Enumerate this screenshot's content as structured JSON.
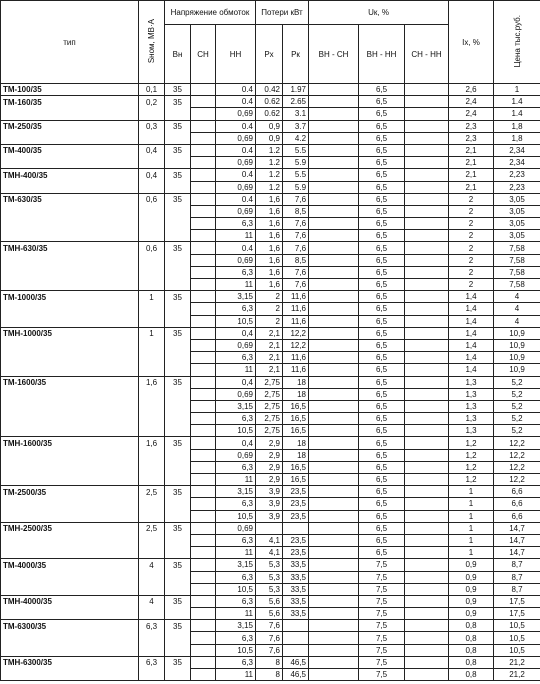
{
  "table": {
    "header": {
      "type": "тип",
      "s_nom": "Sном, МВ·А",
      "voltage": "Напряжение обмоток",
      "losses": "Потери кВт",
      "uk": "Uк, %",
      "ix": "Iх, %",
      "price": "Цена тыс.руб.",
      "sub": [
        "Вн",
        "СН",
        "НН",
        "Рх",
        "Рк",
        "ВН - СН",
        "ВН - НН",
        "СН - НН"
      ]
    },
    "rows": [
      [
        "ТМ-100/35",
        "0,1",
        "35",
        null,
        "0.4",
        "0.42",
        "1.97",
        null,
        "6,5",
        null,
        "2,6",
        "1"
      ],
      [
        "ТМ-160/35",
        "0,2",
        "35",
        null,
        "0.4",
        "0.62",
        "2.65",
        null,
        "6,5",
        null,
        "2,4",
        "1.4"
      ],
      [
        null,
        null,
        null,
        null,
        "0,69",
        "0.62",
        "3.1",
        null,
        "6,5",
        null,
        "2,4",
        "1.4"
      ],
      [
        "ТМ-250/35",
        "0,3",
        "35",
        null,
        "0.4",
        "0,9",
        "3.7",
        null,
        "6,5",
        null,
        "2,3",
        "1,8"
      ],
      [
        null,
        null,
        null,
        null,
        "0,69",
        "0,9",
        "4.2",
        null,
        "6,5",
        null,
        "2,3",
        "1,8"
      ],
      [
        "ТМ-400/35",
        "0,4",
        "35",
        null,
        "0.4",
        "1.2",
        "5.5",
        null,
        "6,5",
        null,
        "2,1",
        "2,34"
      ],
      [
        null,
        null,
        null,
        null,
        "0,69",
        "1.2",
        "5.9",
        null,
        "6,5",
        null,
        "2,1",
        "2,34"
      ],
      [
        "ТМН-400/35",
        "0,4",
        "35",
        null,
        "0.4",
        "1.2",
        "5.5",
        null,
        "6,5",
        null,
        "2,1",
        "2,23"
      ],
      [
        null,
        null,
        null,
        null,
        "0,69",
        "1.2",
        "5.9",
        null,
        "6,5",
        null,
        "2,1",
        "2,23"
      ],
      [
        "ТМ-630/35",
        "0,6",
        "35",
        null,
        "0.4",
        "1,6",
        "7,6",
        null,
        "6,5",
        null,
        "2",
        "3,05"
      ],
      [
        null,
        null,
        null,
        null,
        "0,69",
        "1,6",
        "8,5",
        null,
        "6,5",
        null,
        "2",
        "3,05"
      ],
      [
        null,
        null,
        null,
        null,
        "6,3",
        "1,6",
        "7,6",
        null,
        "6,5",
        null,
        "2",
        "3,05"
      ],
      [
        null,
        null,
        null,
        null,
        "11",
        "1,6",
        "7,6",
        null,
        "6,5",
        null,
        "2",
        "3,05"
      ],
      [
        "ТМН-630/35",
        "0,6",
        "35",
        null,
        "0.4",
        "1,6",
        "7,6",
        null,
        "6,5",
        null,
        "2",
        "7,58"
      ],
      [
        null,
        null,
        null,
        null,
        "0,69",
        "1,6",
        "8,5",
        null,
        "6,5",
        null,
        "2",
        "7,58"
      ],
      [
        null,
        null,
        null,
        null,
        "6,3",
        "1,6",
        "7,6",
        null,
        "6,5",
        null,
        "2",
        "7,58"
      ],
      [
        null,
        null,
        null,
        null,
        "11",
        "1,6",
        "7,6",
        null,
        "6,5",
        null,
        "2",
        "7,58"
      ],
      [
        "ТМ-1000/35",
        "1",
        "35",
        null,
        "3,15",
        "2",
        "11,6",
        null,
        "6,5",
        null,
        "1,4",
        "4"
      ],
      [
        null,
        null,
        null,
        null,
        "6,3",
        "2",
        "11,6",
        null,
        "6,5",
        null,
        "1,4",
        "4"
      ],
      [
        null,
        null,
        null,
        null,
        "10,5",
        "2",
        "11,6",
        null,
        "6,5",
        null,
        "1,4",
        "4"
      ],
      [
        "ТМН-1000/35",
        "1",
        "35",
        null,
        "0,4",
        "2,1",
        "12,2",
        null,
        "6,5",
        null,
        "1,4",
        "10,9"
      ],
      [
        null,
        null,
        null,
        null,
        "0,69",
        "2,1",
        "12,2",
        null,
        "6,5",
        null,
        "1,4",
        "10,9"
      ],
      [
        null,
        null,
        null,
        null,
        "6,3",
        "2,1",
        "11,6",
        null,
        "6,5",
        null,
        "1,4",
        "10,9"
      ],
      [
        null,
        null,
        null,
        null,
        "11",
        "2,1",
        "11,6",
        null,
        "6,5",
        null,
        "1,4",
        "10,9"
      ],
      [
        "ТМ-1600/35",
        "1,6",
        "35",
        null,
        "0,4",
        "2,75",
        "18",
        null,
        "6,5",
        null,
        "1,3",
        "5,2"
      ],
      [
        null,
        null,
        null,
        null,
        "0,69",
        "2,75",
        "18",
        null,
        "6,5",
        null,
        "1,3",
        "5,2"
      ],
      [
        null,
        null,
        null,
        null,
        "3,15",
        "2,75",
        "16,5",
        null,
        "6,5",
        null,
        "1,3",
        "5,2"
      ],
      [
        null,
        null,
        null,
        null,
        "6,3",
        "2,75",
        "16,5",
        null,
        "6,5",
        null,
        "1,3",
        "5,2"
      ],
      [
        null,
        null,
        null,
        null,
        "10,5",
        "2,75",
        "16,5",
        null,
        "6,5",
        null,
        "1,3",
        "5,2"
      ],
      [
        "ТМН-1600/35",
        "1,6",
        "35",
        null,
        "0,4",
        "2,9",
        "18",
        null,
        "6,5",
        null,
        "1,2",
        "12,2"
      ],
      [
        null,
        null,
        null,
        null,
        "0,69",
        "2,9",
        "18",
        null,
        "6,5",
        null,
        "1,2",
        "12,2"
      ],
      [
        null,
        null,
        null,
        null,
        "6,3",
        "2,9",
        "16,5",
        null,
        "6,5",
        null,
        "1,2",
        "12,2"
      ],
      [
        null,
        null,
        null,
        null,
        "11",
        "2,9",
        "16,5",
        null,
        "6,5",
        null,
        "1,2",
        "12,2"
      ],
      [
        "ТМ-2500/35",
        "2,5",
        "35",
        null,
        "3,15",
        "3,9",
        "23,5",
        null,
        "6,5",
        null,
        "1",
        "6,6"
      ],
      [
        null,
        null,
        null,
        null,
        "6,3",
        "3,9",
        "23,5",
        null,
        "6,5",
        null,
        "1",
        "6,6"
      ],
      [
        null,
        null,
        null,
        null,
        "10,5",
        "3,9",
        "23,5",
        null,
        "6,5",
        null,
        "1",
        "6,6"
      ],
      [
        "ТМН-2500/35",
        "2,5",
        "35",
        null,
        "0,69",
        null,
        null,
        null,
        "6,5",
        null,
        "1",
        "14,7"
      ],
      [
        null,
        null,
        null,
        null,
        "6,3",
        "4,1",
        "23,5",
        null,
        "6,5",
        null,
        "1",
        "14,7"
      ],
      [
        null,
        null,
        null,
        null,
        "11",
        "4,1",
        "23,5",
        null,
        "6,5",
        null,
        "1",
        "14,7"
      ],
      [
        "ТМ-4000/35",
        "4",
        "35",
        null,
        "3,15",
        "5,3",
        "33,5",
        null,
        "7,5",
        null,
        "0,9",
        "8,7"
      ],
      [
        null,
        null,
        null,
        null,
        "6,3",
        "5,3",
        "33,5",
        null,
        "7,5",
        null,
        "0,9",
        "8,7"
      ],
      [
        null,
        null,
        null,
        null,
        "10,5",
        "5,3",
        "33,5",
        null,
        "7,5",
        null,
        "0,9",
        "8,7"
      ],
      [
        "ТМН-4000/35",
        "4",
        "35",
        null,
        "6,3",
        "5,6",
        "33,5",
        null,
        "7,5",
        null,
        "0,9",
        "17,5"
      ],
      [
        null,
        null,
        null,
        null,
        "11",
        "5,6",
        "33,5",
        null,
        "7,5",
        null,
        "0,9",
        "17,5"
      ],
      [
        "ТМ-6300/35",
        "6,3",
        "35",
        null,
        "3,15",
        "7,6",
        null,
        null,
        "7,5",
        null,
        "0,8",
        "10,5"
      ],
      [
        null,
        null,
        null,
        null,
        "6,3",
        "7,6",
        null,
        null,
        "7,5",
        null,
        "0,8",
        "10,5"
      ],
      [
        null,
        null,
        null,
        null,
        "10,5",
        "7,6",
        null,
        null,
        "7,5",
        null,
        "0,8",
        "10,5"
      ],
      [
        "ТМН-6300/35",
        "6,3",
        "35",
        null,
        "6,3",
        "8",
        "46,5",
        null,
        "7,5",
        null,
        "0,8",
        "21,2"
      ],
      [
        null,
        null,
        null,
        null,
        "11",
        "8",
        "46,5",
        null,
        "7,5",
        null,
        "0,8",
        "21,2"
      ]
    ]
  }
}
